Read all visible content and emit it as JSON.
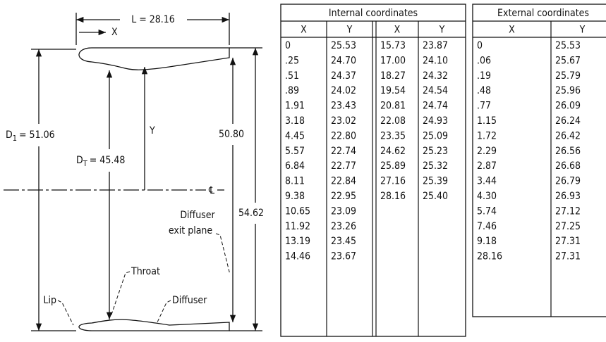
{
  "diagram": {
    "length_label": "L = 28.16",
    "x_label": "X",
    "y_label": "Y",
    "d1": {
      "symbol": "D",
      "subscript": "1",
      "value": "= 51.06"
    },
    "dt": {
      "symbol": "D",
      "subscript": "T",
      "value": "= 45.48"
    },
    "inner_height": "50.80",
    "outer_height": "54.62",
    "centerline": "℄",
    "exit_plane": [
      "Diffuser",
      "exit plane"
    ],
    "throat": "Throat",
    "lip": "Lip",
    "diffuser": "Diffuser"
  },
  "internal_table": {
    "title": "Internal coordinates",
    "headers": [
      "X",
      "Y",
      "X",
      "Y"
    ],
    "left": [
      [
        "0",
        "25.53"
      ],
      [
        ".25",
        "24.70"
      ],
      [
        ".51",
        "24.37"
      ],
      [
        ".89",
        "24.02"
      ],
      [
        "1.91",
        "23.43"
      ],
      [
        "3.18",
        "23.02"
      ],
      [
        "4.45",
        "22.80"
      ],
      [
        "5.57",
        "22.74"
      ],
      [
        "6.84",
        "22.77"
      ],
      [
        "8.11",
        "22.84"
      ],
      [
        "9.38",
        "22.95"
      ],
      [
        "10.65",
        "23.09"
      ],
      [
        "11.92",
        "23.26"
      ],
      [
        "13.19",
        "23.45"
      ],
      [
        "14.46",
        "23.67"
      ]
    ],
    "right": [
      [
        "15.73",
        "23.87"
      ],
      [
        "17.00",
        "24.10"
      ],
      [
        "18.27",
        "24.32"
      ],
      [
        "19.54",
        "24.54"
      ],
      [
        "20.81",
        "24.74"
      ],
      [
        "22.08",
        "24.93"
      ],
      [
        "23.35",
        "25.09"
      ],
      [
        "24.62",
        "25.23"
      ],
      [
        "25.89",
        "25.32"
      ],
      [
        "27.16",
        "25.39"
      ],
      [
        "28.16",
        "25.40"
      ]
    ]
  },
  "external_table": {
    "title": "External coordinates",
    "headers": [
      "X",
      "Y"
    ],
    "rows": [
      [
        "0",
        "25.53"
      ],
      [
        ".06",
        "25.67"
      ],
      [
        ".19",
        "25.79"
      ],
      [
        ".48",
        "25.96"
      ],
      [
        ".77",
        "26.09"
      ],
      [
        "1.15",
        "26.24"
      ],
      [
        "1.72",
        "26.42"
      ],
      [
        "2.29",
        "26.56"
      ],
      [
        "2.87",
        "26.68"
      ],
      [
        "3.44",
        "26.79"
      ],
      [
        "4.30",
        "26.93"
      ],
      [
        "5.74",
        "27.12"
      ],
      [
        "7.46",
        "27.25"
      ],
      [
        "9.18",
        "27.31"
      ],
      [
        "28.16",
        "27.31"
      ]
    ]
  }
}
